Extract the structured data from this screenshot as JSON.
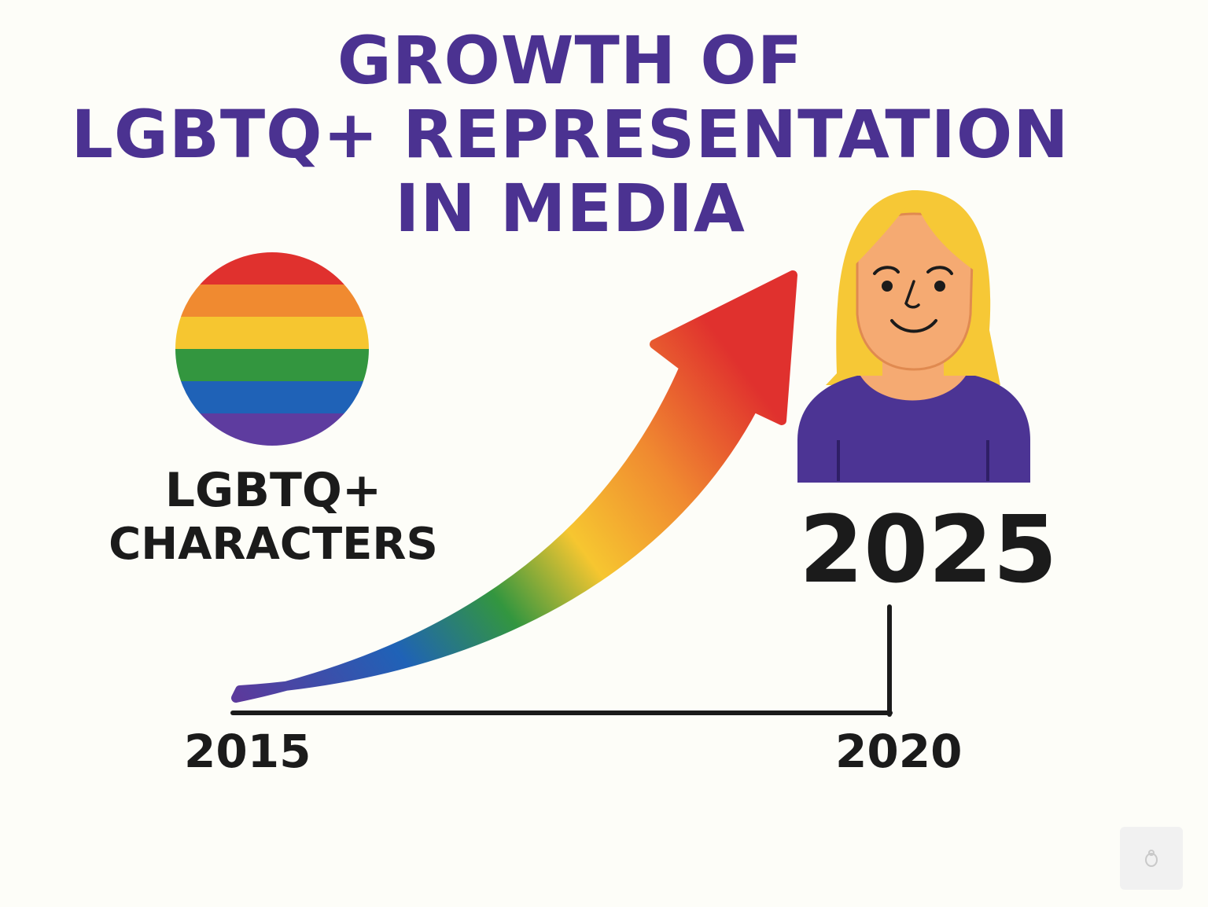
{
  "title": {
    "line1": "GROWTH OF",
    "line2": "LGBTQ+ REPRESENTATION",
    "line3": "IN MEDIA"
  },
  "label": {
    "line1": "LGBTQ+",
    "line2": "CHARACTERS"
  },
  "years": {
    "start": "2015",
    "middle": "2020",
    "end": "2025"
  },
  "colors": {
    "title": "#4b3291",
    "text": "#1b1b1b",
    "background": "#fdfdf8",
    "rainbow": [
      "#e0312e",
      "#f08a30",
      "#f6c630",
      "#33963f",
      "#1f62b7",
      "#5e3c9f"
    ]
  },
  "icons": {
    "flag": "pride-flag-circle-icon",
    "arrow": "rainbow-growth-arrow-icon",
    "person": "person-avatar-icon"
  }
}
